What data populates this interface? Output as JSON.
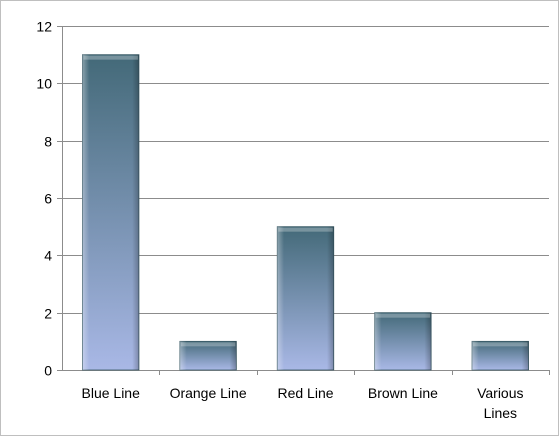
{
  "chart_data": {
    "type": "bar",
    "categories": [
      "Blue Line",
      "Orange Line",
      "Red Line",
      "Brown Line",
      "Various Lines"
    ],
    "category_label_lines": [
      [
        "Blue Line"
      ],
      [
        "Orange Line"
      ],
      [
        "Red Line"
      ],
      [
        "Brown Line"
      ],
      [
        "Various",
        "Lines"
      ]
    ],
    "values": [
      11,
      1,
      5,
      2,
      1
    ],
    "title": "",
    "xlabel": "",
    "ylabel": "",
    "ylim": [
      0,
      12
    ],
    "yticks": [
      0,
      2,
      4,
      6,
      8,
      10,
      12
    ],
    "grid": true,
    "legend": "none",
    "colors": {
      "bar_top": "#436978",
      "bar_bottom": "#a9b8e6",
      "grid": "#8c8c8c",
      "frame": "#bfbfbf"
    }
  }
}
